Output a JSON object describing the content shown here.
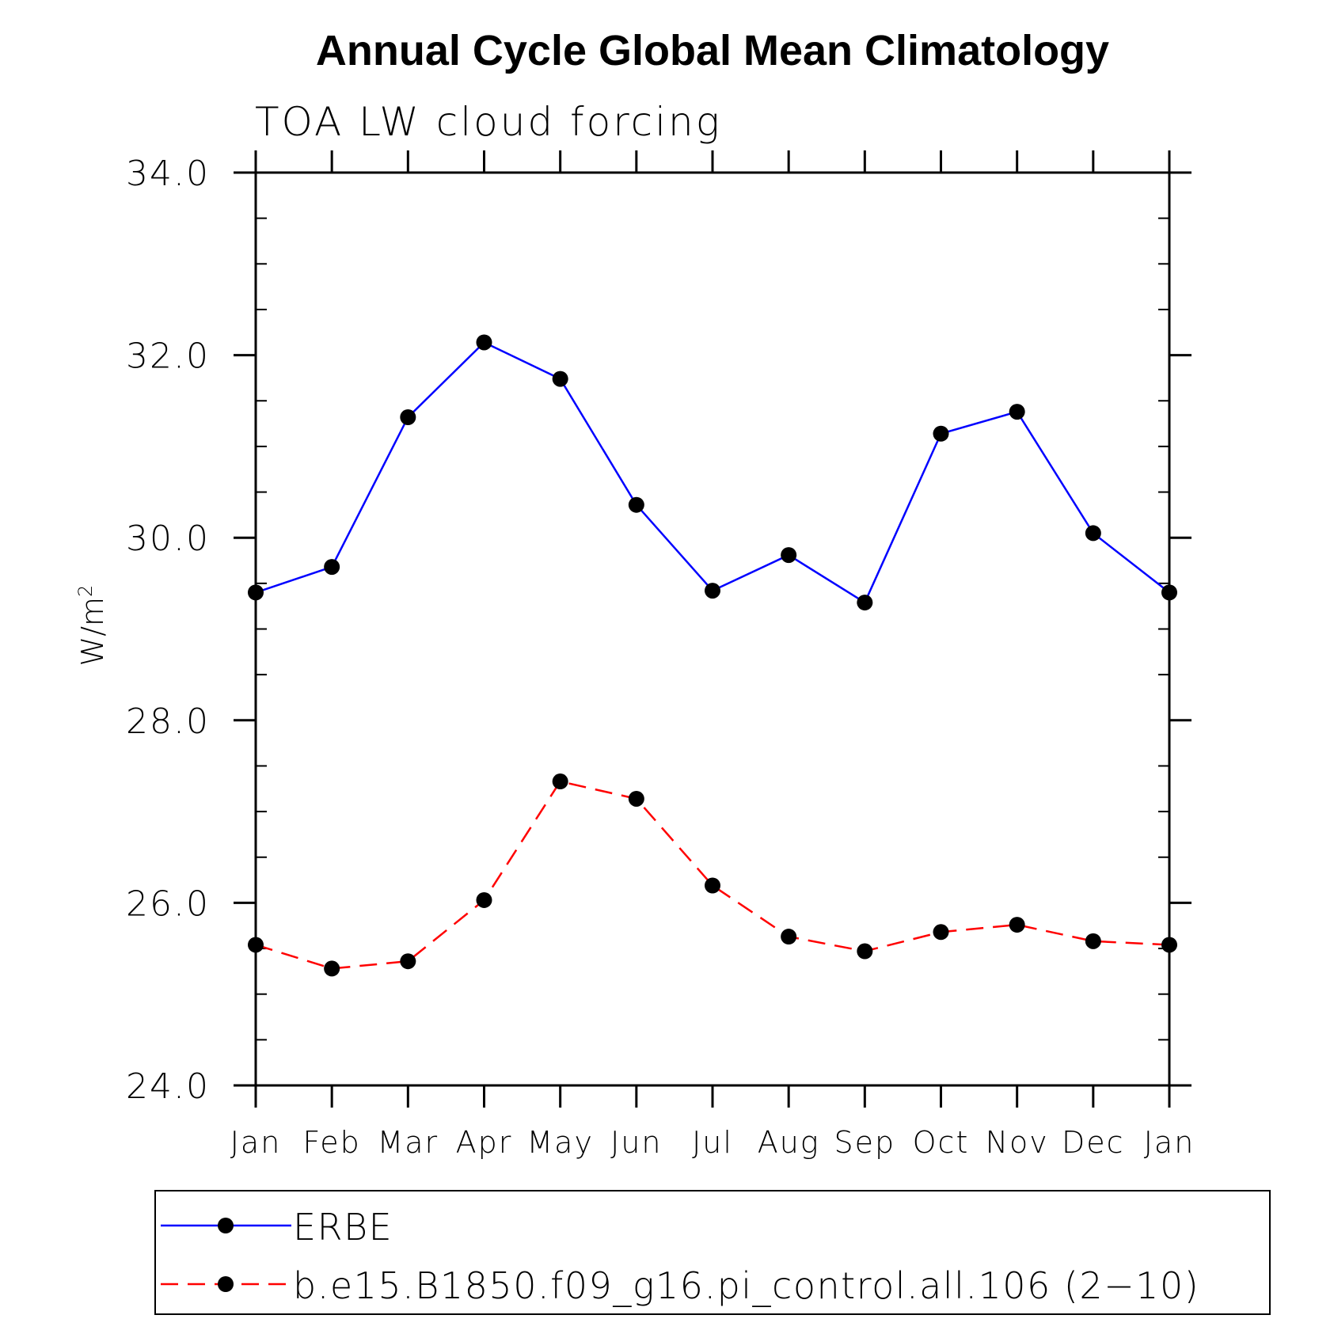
{
  "chart_data": {
    "type": "line",
    "title": "Annual Cycle Global Mean Climatology",
    "subtitle": "TOA LW cloud forcing",
    "xlabel": "",
    "ylabel": "W/m",
    "ylabel_superscript": "2",
    "categories": [
      "Jan",
      "Feb",
      "Mar",
      "Apr",
      "May",
      "Jun",
      "Jul",
      "Aug",
      "Sep",
      "Oct",
      "Nov",
      "Dec",
      "Jan"
    ],
    "ylim": [
      24.0,
      34.0
    ],
    "yticks": [
      "24.0",
      "26.0",
      "28.0",
      "30.0",
      "32.0",
      "34.0"
    ],
    "grid": false,
    "legend_position": "bottom",
    "series": [
      {
        "name": "ERBE",
        "color": "#0000ff",
        "dash": "solid",
        "values": [
          29.4,
          29.68,
          31.32,
          32.14,
          31.74,
          30.36,
          29.42,
          29.81,
          29.29,
          31.14,
          31.38,
          30.05,
          29.4
        ]
      },
      {
        "name": "b.e15.B1850.f09_g16.pi_control.all.106 (2−10)",
        "color": "#ff0000",
        "dash": "dashed",
        "values": [
          25.54,
          25.28,
          25.36,
          26.03,
          27.33,
          27.14,
          26.19,
          25.63,
          25.47,
          25.68,
          25.76,
          25.58,
          25.54
        ]
      }
    ]
  }
}
